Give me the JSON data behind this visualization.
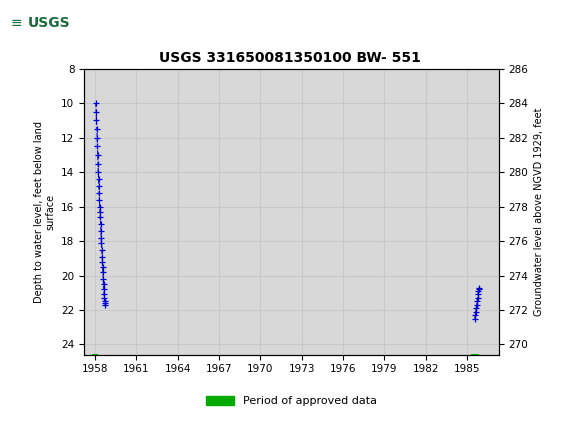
{
  "title": "USGS 331650081350100 BW- 551",
  "header_bg_color": "#1a6b3c",
  "plot_bg_color": "#d8d8d8",
  "fig_bg_color": "#ffffff",
  "left_ylabel": "Depth to water level, feet below land\nsurface",
  "right_ylabel": "Groundwater level above NGVD 1929, feet",
  "xlabel_ticks": [
    1958,
    1961,
    1964,
    1967,
    1970,
    1973,
    1976,
    1979,
    1982,
    1985
  ],
  "xlim": [
    1957.2,
    1987.3
  ],
  "ylim_left_top": 8,
  "ylim_left_bottom": 24.6,
  "yticks_left": [
    8,
    10,
    12,
    14,
    16,
    18,
    20,
    22,
    24
  ],
  "yticks_right": [
    286,
    284,
    282,
    280,
    278,
    276,
    274,
    272,
    270
  ],
  "grid_color": "#c8c8c8",
  "line_color": "#0000cc",
  "approved_bar_color": "#00aa00",
  "legend_label": "Period of approved data",
  "early_data_x": [
    1958.05,
    1958.08,
    1958.1,
    1958.13,
    1958.15,
    1958.17,
    1958.19,
    1958.21,
    1958.23,
    1958.25,
    1958.27,
    1958.29,
    1958.31,
    1958.33,
    1958.36,
    1958.38,
    1958.4,
    1958.42,
    1958.44,
    1958.46,
    1958.49,
    1958.51,
    1958.53,
    1958.55,
    1958.57,
    1958.59,
    1958.61,
    1958.63,
    1958.65,
    1958.67,
    1958.69,
    1958.71,
    1958.73
  ],
  "early_data_y": [
    10.0,
    10.5,
    11.0,
    11.5,
    12.0,
    12.5,
    13.0,
    13.5,
    14.0,
    14.4,
    14.8,
    15.2,
    15.6,
    16.0,
    16.3,
    16.6,
    17.0,
    17.4,
    17.8,
    18.1,
    18.5,
    18.9,
    19.2,
    19.5,
    19.8,
    20.2,
    20.5,
    20.8,
    21.1,
    21.3,
    21.5,
    21.6,
    21.7
  ],
  "late_data_x": [
    1985.55,
    1985.6,
    1985.63,
    1985.67,
    1985.7,
    1985.73,
    1985.76,
    1985.79,
    1985.82,
    1985.85,
    1985.88
  ],
  "late_data_y": [
    22.5,
    22.3,
    22.1,
    21.9,
    21.7,
    21.5,
    21.3,
    21.1,
    20.9,
    20.8,
    20.7
  ],
  "seg1_xstart": 1957.75,
  "seg1_xend": 1958.2,
  "seg2_xstart": 1985.3,
  "seg2_xend": 1985.85
}
